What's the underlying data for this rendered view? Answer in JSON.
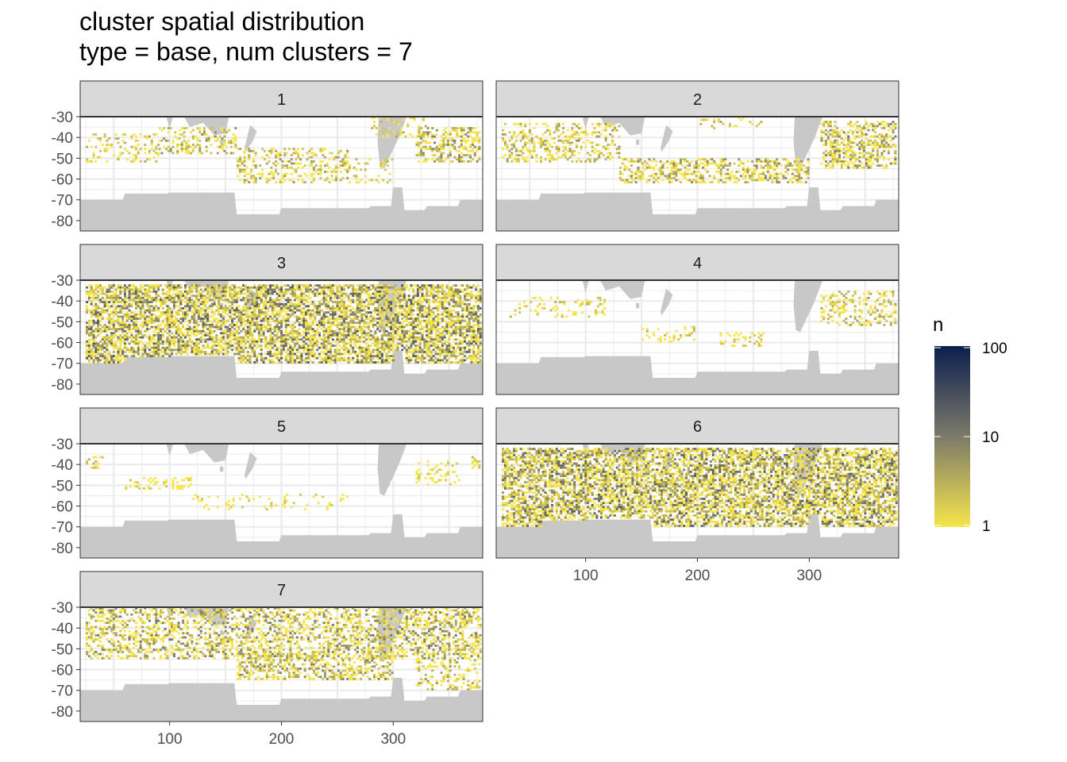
{
  "title_line1": "cluster spatial distribution",
  "title_line2": "type = base, num clusters = 7",
  "chart_data": {
    "type": "heatmap",
    "facet_labels": [
      "1",
      "2",
      "3",
      "4",
      "5",
      "6",
      "7"
    ],
    "x_ticks": [
      100,
      200,
      300
    ],
    "x_tick_labels": [
      "100",
      "200",
      "300"
    ],
    "xlim": [
      20,
      380
    ],
    "y_ticks": [
      -30,
      -40,
      -50,
      -60,
      -70,
      -80
    ],
    "y_tick_labels": [
      "-30",
      "-40",
      "-50",
      "-60",
      "-70",
      "-80"
    ],
    "ylim": [
      -85,
      -30
    ],
    "legend": {
      "title": "n",
      "scale": "log10",
      "breaks": [
        1,
        10,
        100
      ],
      "break_labels": [
        "1",
        "10",
        "100"
      ],
      "colors": [
        "#F6E54B",
        "#7C7A6A",
        "#0B1F4D"
      ],
      "placement": "right"
    },
    "land_color": "#C8C8C8",
    "grid": true,
    "panels": [
      {
        "cluster": "1",
        "bands": [
          {
            "x": [
              25,
              90
            ],
            "y": [
              -38,
              -52
            ],
            "density": 0.25,
            "max_n": 4
          },
          {
            "x": [
              90,
              160
            ],
            "y": [
              -35,
              -48
            ],
            "density": 0.3,
            "max_n": 8
          },
          {
            "x": [
              160,
              260
            ],
            "y": [
              -45,
              -62
            ],
            "density": 0.3,
            "max_n": 6
          },
          {
            "x": [
              260,
              300
            ],
            "y": [
              -50,
              -62
            ],
            "density": 0.2,
            "max_n": 3
          },
          {
            "x": [
              320,
              378
            ],
            "y": [
              -35,
              -52
            ],
            "density": 0.45,
            "max_n": 10
          },
          {
            "x": [
              280,
              330
            ],
            "y": [
              -30,
              -40
            ],
            "density": 0.2,
            "max_n": 4
          }
        ]
      },
      {
        "cluster": "2",
        "bands": [
          {
            "x": [
              25,
              130
            ],
            "y": [
              -33,
              -52
            ],
            "density": 0.3,
            "max_n": 6
          },
          {
            "x": [
              130,
              300
            ],
            "y": [
              -50,
              -62
            ],
            "density": 0.4,
            "max_n": 8
          },
          {
            "x": [
              310,
              378
            ],
            "y": [
              -32,
              -55
            ],
            "density": 0.45,
            "max_n": 12
          },
          {
            "x": [
              200,
              260
            ],
            "y": [
              -30,
              -36
            ],
            "density": 0.2,
            "max_n": 4
          }
        ]
      },
      {
        "cluster": "3",
        "bands": [
          {
            "x": [
              25,
              378
            ],
            "y": [
              -32,
              -70
            ],
            "density": 0.65,
            "max_n": 25
          }
        ]
      },
      {
        "cluster": "4",
        "bands": [
          {
            "x": [
              30,
              120
            ],
            "y": [
              -38,
              -48
            ],
            "density": 0.15,
            "max_n": 3
          },
          {
            "x": [
              150,
              200
            ],
            "y": [
              -52,
              -60
            ],
            "density": 0.2,
            "max_n": 3
          },
          {
            "x": [
              220,
              260
            ],
            "y": [
              -55,
              -62
            ],
            "density": 0.25,
            "max_n": 3
          },
          {
            "x": [
              310,
              378
            ],
            "y": [
              -35,
              -52
            ],
            "density": 0.3,
            "max_n": 5
          }
        ]
      },
      {
        "cluster": "5",
        "bands": [
          {
            "x": [
              25,
              40
            ],
            "y": [
              -36,
              -42
            ],
            "density": 0.4,
            "max_n": 3
          },
          {
            "x": [
              60,
              120
            ],
            "y": [
              -46,
              -52
            ],
            "density": 0.25,
            "max_n": 2
          },
          {
            "x": [
              120,
              260
            ],
            "y": [
              -54,
              -62
            ],
            "density": 0.12,
            "max_n": 2
          },
          {
            "x": [
              320,
              360
            ],
            "y": [
              -38,
              -50
            ],
            "density": 0.2,
            "max_n": 2
          },
          {
            "x": [
              370,
              378
            ],
            "y": [
              -36,
              -42
            ],
            "density": 0.5,
            "max_n": 3
          }
        ]
      },
      {
        "cluster": "6",
        "bands": [
          {
            "x": [
              25,
              378
            ],
            "y": [
              -32,
              -70
            ],
            "density": 0.62,
            "max_n": 22
          }
        ]
      },
      {
        "cluster": "7",
        "bands": [
          {
            "x": [
              25,
              378
            ],
            "y": [
              -30,
              -55
            ],
            "density": 0.4,
            "max_n": 12
          },
          {
            "x": [
              160,
              300
            ],
            "y": [
              -52,
              -65
            ],
            "density": 0.45,
            "max_n": 10
          },
          {
            "x": [
              320,
              378
            ],
            "y": [
              -55,
              -70
            ],
            "density": 0.25,
            "max_n": 6
          }
        ]
      }
    ]
  }
}
